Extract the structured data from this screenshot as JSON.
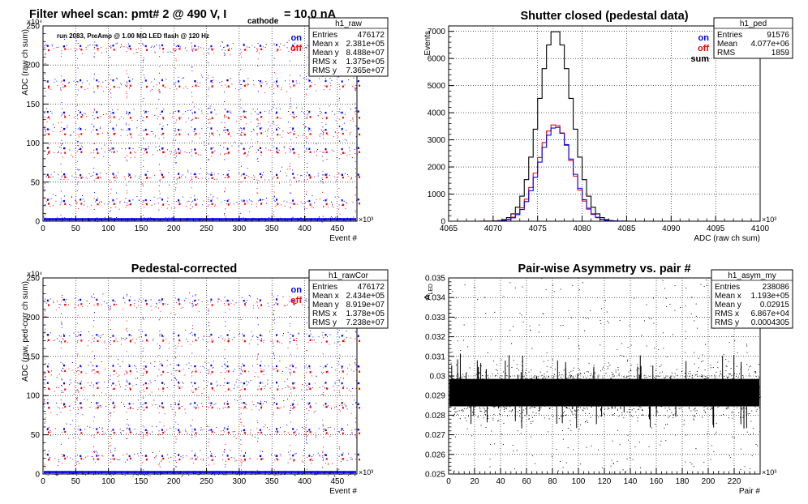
{
  "colors": {
    "on": "#0000ff",
    "off": "#ff0000",
    "sum": "#000000",
    "asym": "#000000"
  },
  "chart_data": [
    {
      "id": "raw",
      "type": "scatter",
      "title_main": "Filter wheel scan: pmt#   2 @   490 V, I",
      "title_sub": "cathode",
      "title_tail": "= 10.0 nA",
      "info": "run 2083, PreAmp @ 1.00 MΩ   LED flash @  120 Hz",
      "xlabel": "Event #",
      "ylabel": "ADC (raw ch sum)",
      "x_exp": "×10³",
      "y_exp": "×10⁴",
      "xlim": [
        0,
        480
      ],
      "ylim": [
        0,
        250
      ],
      "x_ticks": [
        0,
        50,
        100,
        150,
        200,
        250,
        300,
        350,
        400,
        450
      ],
      "y_ticks": [
        0,
        50,
        100,
        150,
        200,
        250
      ],
      "grid": true,
      "legend": [
        "on",
        "off"
      ],
      "stats": {
        "name": "h1_raw",
        "rows": [
          [
            "Entries",
            "476172"
          ],
          [
            "Mean x",
            "2.381e+05"
          ],
          [
            "Mean y",
            "8.488e+07"
          ],
          [
            "RMS x",
            "1.375e+05"
          ],
          [
            "RMS y",
            "7.365e+07"
          ]
        ]
      },
      "bands": [
        {
          "series": "on",
          "y": 225
        },
        {
          "series": "off",
          "y": 220
        },
        {
          "series": "on",
          "y": 180
        },
        {
          "series": "off",
          "y": 173
        },
        {
          "series": "on",
          "y": 140
        },
        {
          "series": "off",
          "y": 133
        },
        {
          "series": "on",
          "y": 118
        },
        {
          "series": "off",
          "y": 112
        },
        {
          "series": "on",
          "y": 93
        },
        {
          "series": "off",
          "y": 88
        },
        {
          "series": "on",
          "y": 60
        },
        {
          "series": "off",
          "y": 56
        },
        {
          "series": "on",
          "y": 27
        },
        {
          "series": "off",
          "y": 22
        },
        {
          "series": "on",
          "y": 3
        }
      ],
      "band_period": 25
    },
    {
      "id": "ped",
      "type": "line",
      "title": "Shutter closed (pedestal data)",
      "xlabel": "ADC (raw ch sum)",
      "ylabel": "Events",
      "x_exp": "×10³",
      "xlim": [
        4065,
        4100
      ],
      "ylim": [
        0,
        7200
      ],
      "x_ticks": [
        4065,
        4070,
        4075,
        4080,
        4085,
        4090,
        4095,
        4100
      ],
      "y_ticks": [
        0,
        1000,
        2000,
        3000,
        4000,
        5000,
        6000,
        7000
      ],
      "grid": true,
      "legend": [
        "on",
        "off",
        "sum"
      ],
      "stats": {
        "name": "h1_ped",
        "rows": [
          [
            "Entries",
            "91576"
          ],
          [
            "Mean",
            "4.077e+06"
          ],
          [
            "RMS",
            "1859"
          ]
        ]
      },
      "series": [
        {
          "name": "sum",
          "mean": 4077.0,
          "sigma": 1.86,
          "peak": 7050
        },
        {
          "name": "off",
          "mean": 4076.95,
          "sigma": 1.86,
          "peak": 3570
        },
        {
          "name": "on",
          "mean": 4077.05,
          "sigma": 1.86,
          "peak": 3480
        }
      ]
    },
    {
      "id": "rawcor",
      "type": "scatter",
      "title": "Pedestal-corrected",
      "xlabel": "Event #",
      "ylabel": "ADC (raw, ped-corr ch sum)",
      "x_exp": "×10³",
      "y_exp": "×10⁴",
      "xlim": [
        0,
        480
      ],
      "ylim": [
        0,
        250
      ],
      "x_ticks": [
        0,
        50,
        100,
        150,
        200,
        250,
        300,
        350,
        400,
        450
      ],
      "y_ticks": [
        0,
        50,
        100,
        150,
        200,
        250
      ],
      "grid": true,
      "legend": [
        "on",
        "off"
      ],
      "stats": {
        "name": "h1_rawCor",
        "rows": [
          [
            "Entries",
            "476172"
          ],
          [
            "Mean x",
            "2.434e+05"
          ],
          [
            "Mean y",
            "8.919e+07"
          ],
          [
            "RMS x",
            "1.378e+05"
          ],
          [
            "RMS y",
            "7.238e+07"
          ]
        ]
      },
      "bands": [
        {
          "series": "on",
          "y": 222
        },
        {
          "series": "off",
          "y": 216
        },
        {
          "series": "on",
          "y": 177
        },
        {
          "series": "off",
          "y": 170
        },
        {
          "series": "on",
          "y": 138
        },
        {
          "series": "off",
          "y": 131
        },
        {
          "series": "on",
          "y": 116
        },
        {
          "series": "off",
          "y": 109
        },
        {
          "series": "on",
          "y": 90
        },
        {
          "series": "off",
          "y": 85
        },
        {
          "series": "on",
          "y": 57
        },
        {
          "series": "off",
          "y": 53
        },
        {
          "series": "on",
          "y": 24
        },
        {
          "series": "off",
          "y": 19
        },
        {
          "series": "on",
          "y": 1
        }
      ],
      "band_period": 25
    },
    {
      "id": "asym",
      "type": "scatter",
      "title": "Pair-wise Asymmetry vs. pair #",
      "xlabel": "Pair #",
      "ylabel": "A_LED",
      "x_exp": "×10³",
      "xlim": [
        0,
        240
      ],
      "ylim": [
        0.025,
        0.035
      ],
      "x_ticks": [
        0,
        20,
        40,
        60,
        80,
        100,
        120,
        140,
        160,
        180,
        200,
        220
      ],
      "y_ticks": [
        0.025,
        0.026,
        0.027,
        0.028,
        0.029,
        0.03,
        0.031,
        0.032,
        0.033,
        0.034,
        0.035
      ],
      "y_tick_labels": [
        "0.025",
        "0.026",
        "0.027",
        "0.028",
        "0.029",
        "0.03",
        "0.031",
        "0.032",
        "0.033",
        "0.034",
        "0.035"
      ],
      "grid": true,
      "stats": {
        "name": "h1_asym_my",
        "rows": [
          [
            "Entries",
            "238086"
          ],
          [
            "Mean x",
            "1.193e+05"
          ],
          [
            "Mean y",
            "0.02915"
          ],
          [
            "RMS x",
            "6.867e+04"
          ],
          [
            "RMS y",
            "0.0004305"
          ]
        ]
      },
      "band_center": 0.02915,
      "band_rms": 0.0004305
    }
  ]
}
